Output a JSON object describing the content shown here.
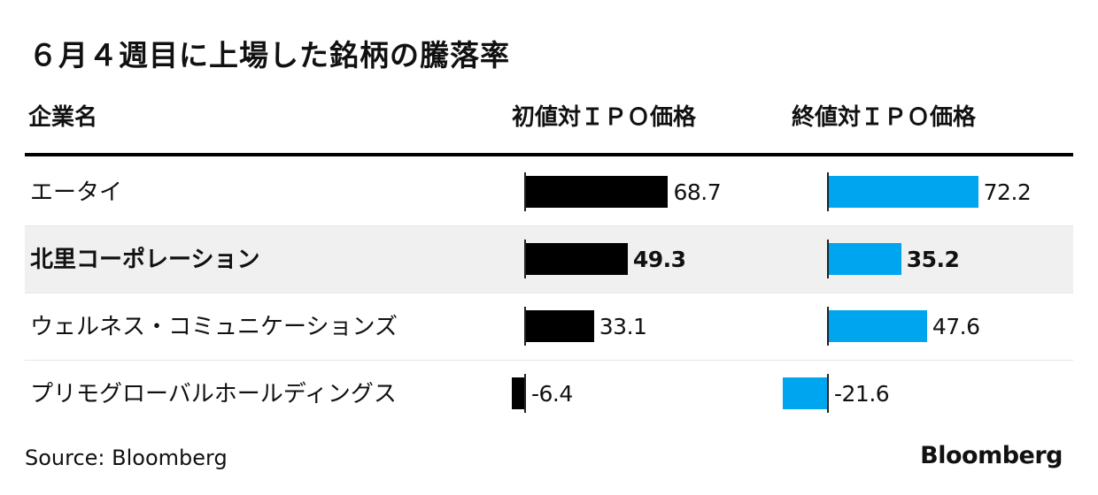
{
  "title": "６月４週目に上場した銘柄の騰落率",
  "headers": {
    "company": "企業名",
    "col1": "初値対ＩＰＯ価格",
    "col2": "終値対ＩＰＯ価格"
  },
  "chart_data": {
    "type": "bar",
    "orientation": "horizontal",
    "categories": [
      "エータイ",
      "北里コーポレーション",
      "ウェルネス・コミュニケーションズ",
      "プリモグローバルホールディングス"
    ],
    "highlight_index": 1,
    "series": [
      {
        "name": "初値対ＩＰＯ価格",
        "color": "#000000",
        "values": [
          68.7,
          49.3,
          33.1,
          -6.4
        ],
        "labels": [
          "68.7",
          "49.3",
          "33.1",
          "-6.4"
        ]
      },
      {
        "name": "終値対ＩＰＯ価格",
        "color": "#00a5ef",
        "values": [
          72.2,
          35.2,
          47.6,
          -21.6
        ],
        "labels": [
          "72.2",
          "35.2",
          "47.6",
          "-21.6"
        ]
      }
    ]
  },
  "footer": {
    "source": "Source: Bloomberg",
    "logo": "Bloomberg"
  }
}
